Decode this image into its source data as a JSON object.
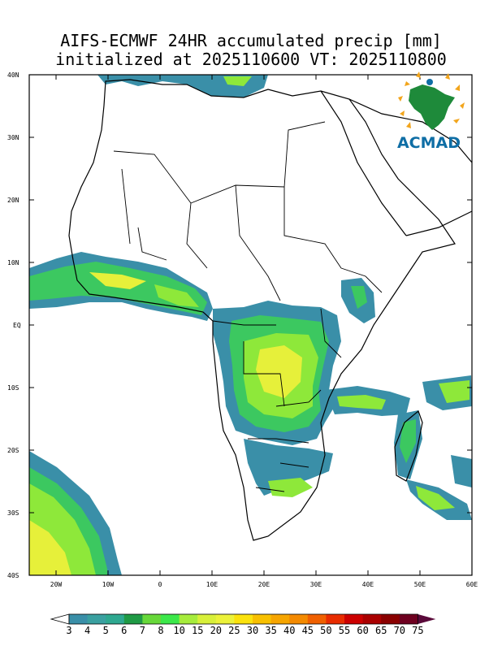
{
  "title": {
    "line1": "AIFS-ECMWF 24HR accumulated precip [mm]",
    "line2": "initialized at 2025110600 VT: 2025110800"
  },
  "map": {
    "lat_labels": [
      "40N",
      "30N",
      "20N",
      "10N",
      "EQ",
      "10S",
      "20S",
      "30S",
      "40S"
    ],
    "lon_labels": [
      "20W",
      "10W",
      "0",
      "10E",
      "20E",
      "30E",
      "40E",
      "50E",
      "60E"
    ]
  },
  "logo": {
    "text": "ACMAD"
  },
  "colorbar": {
    "labels": [
      "3",
      "4",
      "5",
      "6",
      "7",
      "8",
      "10",
      "15",
      "20",
      "25",
      "30",
      "35",
      "40",
      "45",
      "50",
      "55",
      "60",
      "65",
      "70",
      "75"
    ],
    "colors": [
      "#3a8fa8",
      "#3aa0a0",
      "#2ea890",
      "#1f9a45",
      "#67d83a",
      "#3ce84a",
      "#a6ec3c",
      "#d8f03a",
      "#ecf23a",
      "#fbe20d",
      "#f8c000",
      "#f6a500",
      "#f48a00",
      "#f06000",
      "#e82c00",
      "#cc0000",
      "#aa0000",
      "#8a0000",
      "#6e0020",
      "#5a0a3a"
    ]
  },
  "precip_colors": {
    "teal": "#3a8fa8",
    "green": "#3cc860",
    "lime": "#8ee83a",
    "yellow": "#e6f03a"
  }
}
